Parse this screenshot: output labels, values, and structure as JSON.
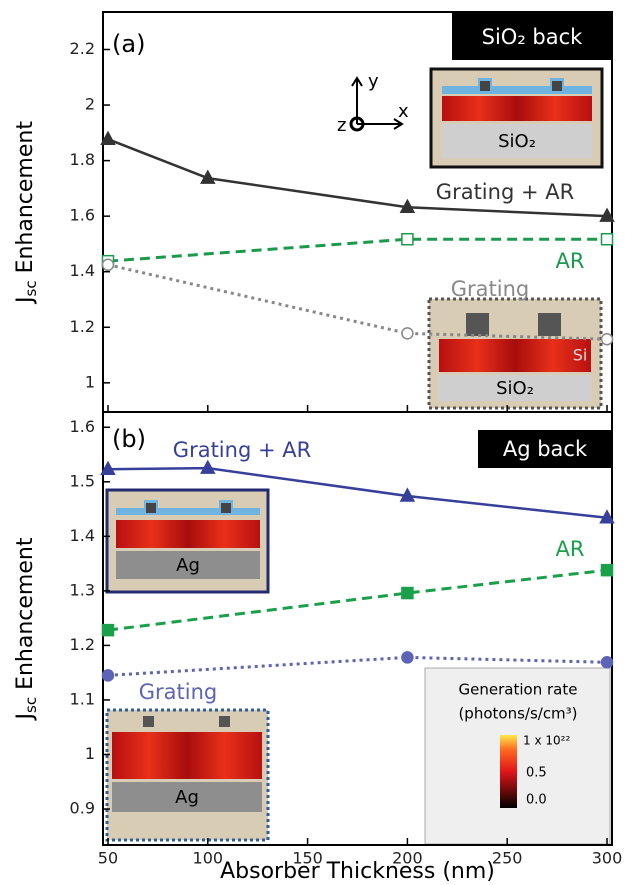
{
  "chart_data": [
    {
      "type": "line",
      "panel_label": "(a)",
      "tag": "SiO₂ back",
      "ylabel": {
        "main": "J",
        "sub": "sc",
        "rest": " Enhancement"
      },
      "xlim": [
        47.5,
        302.5
      ],
      "xticks": [
        50,
        100,
        150,
        200,
        250,
        300
      ],
      "ylim": [
        0.895,
        2.335
      ],
      "yticks": [
        1.0,
        1.2,
        1.4,
        1.6,
        1.8,
        2.0,
        2.2
      ],
      "series": [
        {
          "name": "Grating + AR",
          "color": "#333333",
          "style": "solid",
          "marker": "triangle",
          "filled": true,
          "x": [
            50,
            100,
            200,
            300
          ],
          "values": [
            1.877,
            1.737,
            1.632,
            1.6
          ]
        },
        {
          "name": "AR",
          "color": "#1a9a4a",
          "style": "dashed",
          "marker": "square",
          "filled": false,
          "x": [
            50,
            200,
            300
          ],
          "values": [
            1.438,
            1.517,
            1.517
          ]
        },
        {
          "name": "Grating",
          "color": "#888888",
          "style": "dotted",
          "marker": "circle",
          "filled": false,
          "x": [
            50,
            200,
            300
          ],
          "values": [
            1.425,
            1.178,
            1.157
          ]
        }
      ],
      "insets": {
        "top_layer": "SiO₂",
        "grating_layer": "SiO₂",
        "grating_si": "Si"
      }
    },
    {
      "type": "line",
      "panel_label": "(b)",
      "tag": "Ag back",
      "ylabel": {
        "main": "J",
        "sub": "sc",
        "rest": " Enhancement"
      },
      "xlabel": "Absorber Thickness (nm)",
      "xlim": [
        47.5,
        302.5
      ],
      "xticks": [
        50,
        100,
        150,
        200,
        250,
        300
      ],
      "ylim": [
        0.834,
        1.628
      ],
      "yticks": [
        0.9,
        1.0,
        1.1,
        1.2,
        1.3,
        1.4,
        1.5,
        1.6
      ],
      "series": [
        {
          "name": "Grating + AR",
          "color": "#36409a",
          "style": "solid",
          "marker": "triangle",
          "filled": true,
          "x": [
            50,
            100,
            200,
            300
          ],
          "values": [
            1.523,
            1.525,
            1.474,
            1.434
          ]
        },
        {
          "name": "AR",
          "color": "#1aa04a",
          "style": "dashed",
          "marker": "square",
          "filled": true,
          "x": [
            50,
            200,
            300
          ],
          "values": [
            1.228,
            1.296,
            1.338
          ]
        },
        {
          "name": "Grating",
          "color": "#5d63b5",
          "style": "dotted",
          "marker": "circle",
          "filled": true,
          "x": [
            50,
            200,
            300
          ],
          "values": [
            1.145,
            1.178,
            1.169
          ]
        }
      ],
      "insets": {
        "top_layer": "Ag",
        "grating_layer": "Ag"
      },
      "colorbar": {
        "title": "Generation rate",
        "units": "(photons/s/cm³)",
        "labels": [
          "1 x 10²²",
          "0.5",
          "0.0"
        ]
      }
    }
  ]
}
